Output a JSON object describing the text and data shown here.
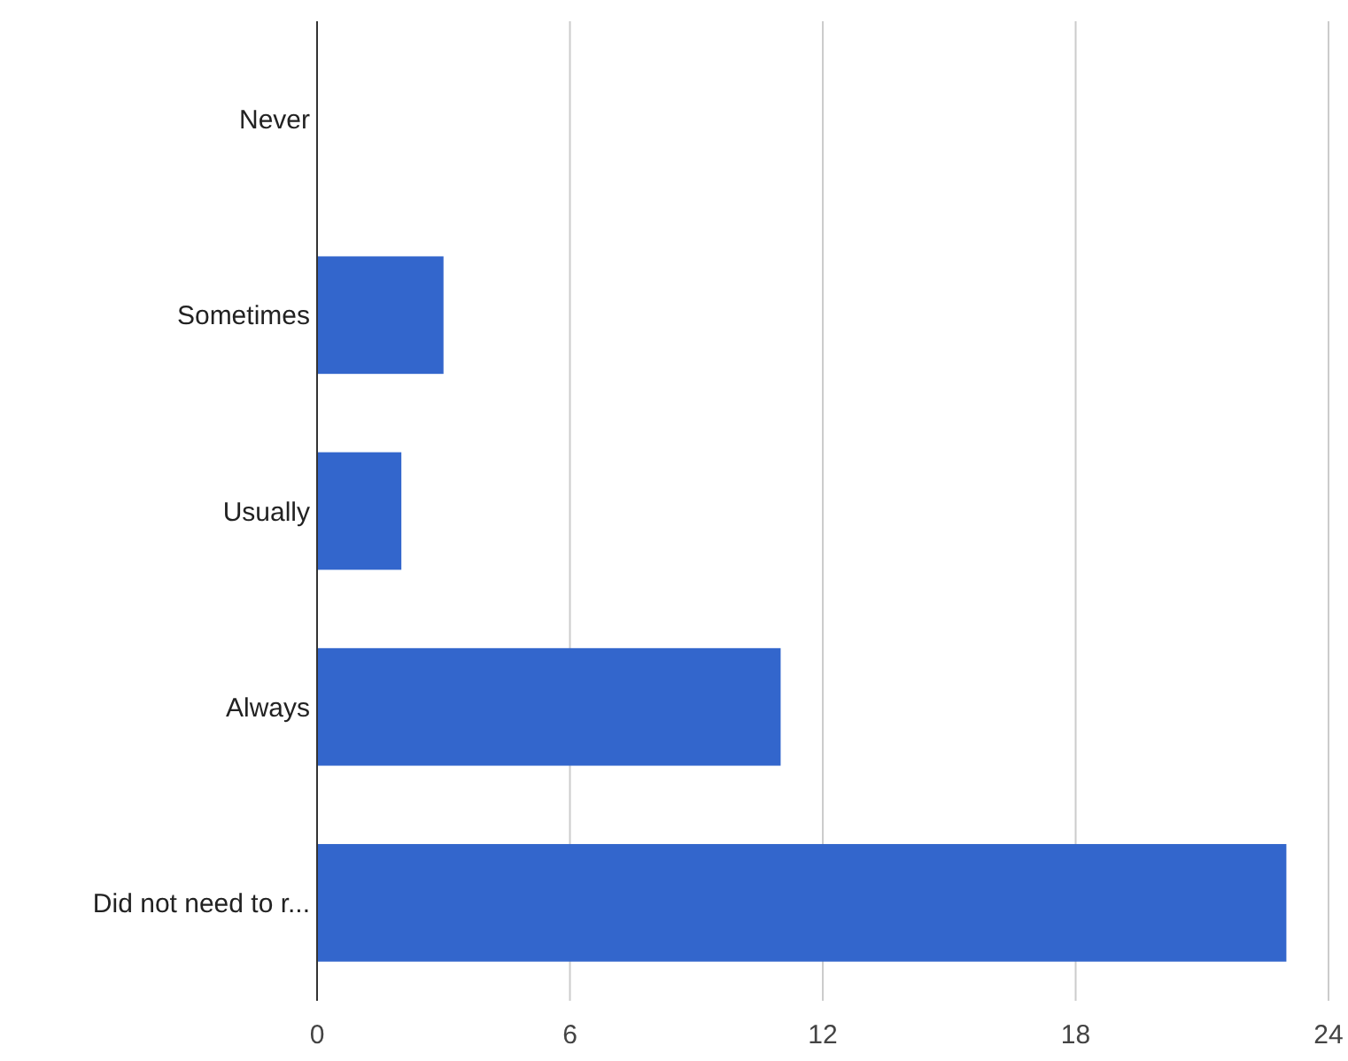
{
  "chart_data": {
    "type": "bar",
    "orientation": "horizontal",
    "categories": [
      "Never",
      "Sometimes",
      "Usually",
      "Always",
      "Did not need to r..."
    ],
    "values": [
      0,
      3,
      2,
      11,
      23
    ],
    "color": "#3366cc",
    "xlim": [
      0,
      24
    ],
    "xticks": [
      0,
      6,
      12,
      18,
      24
    ],
    "grid": "x"
  }
}
